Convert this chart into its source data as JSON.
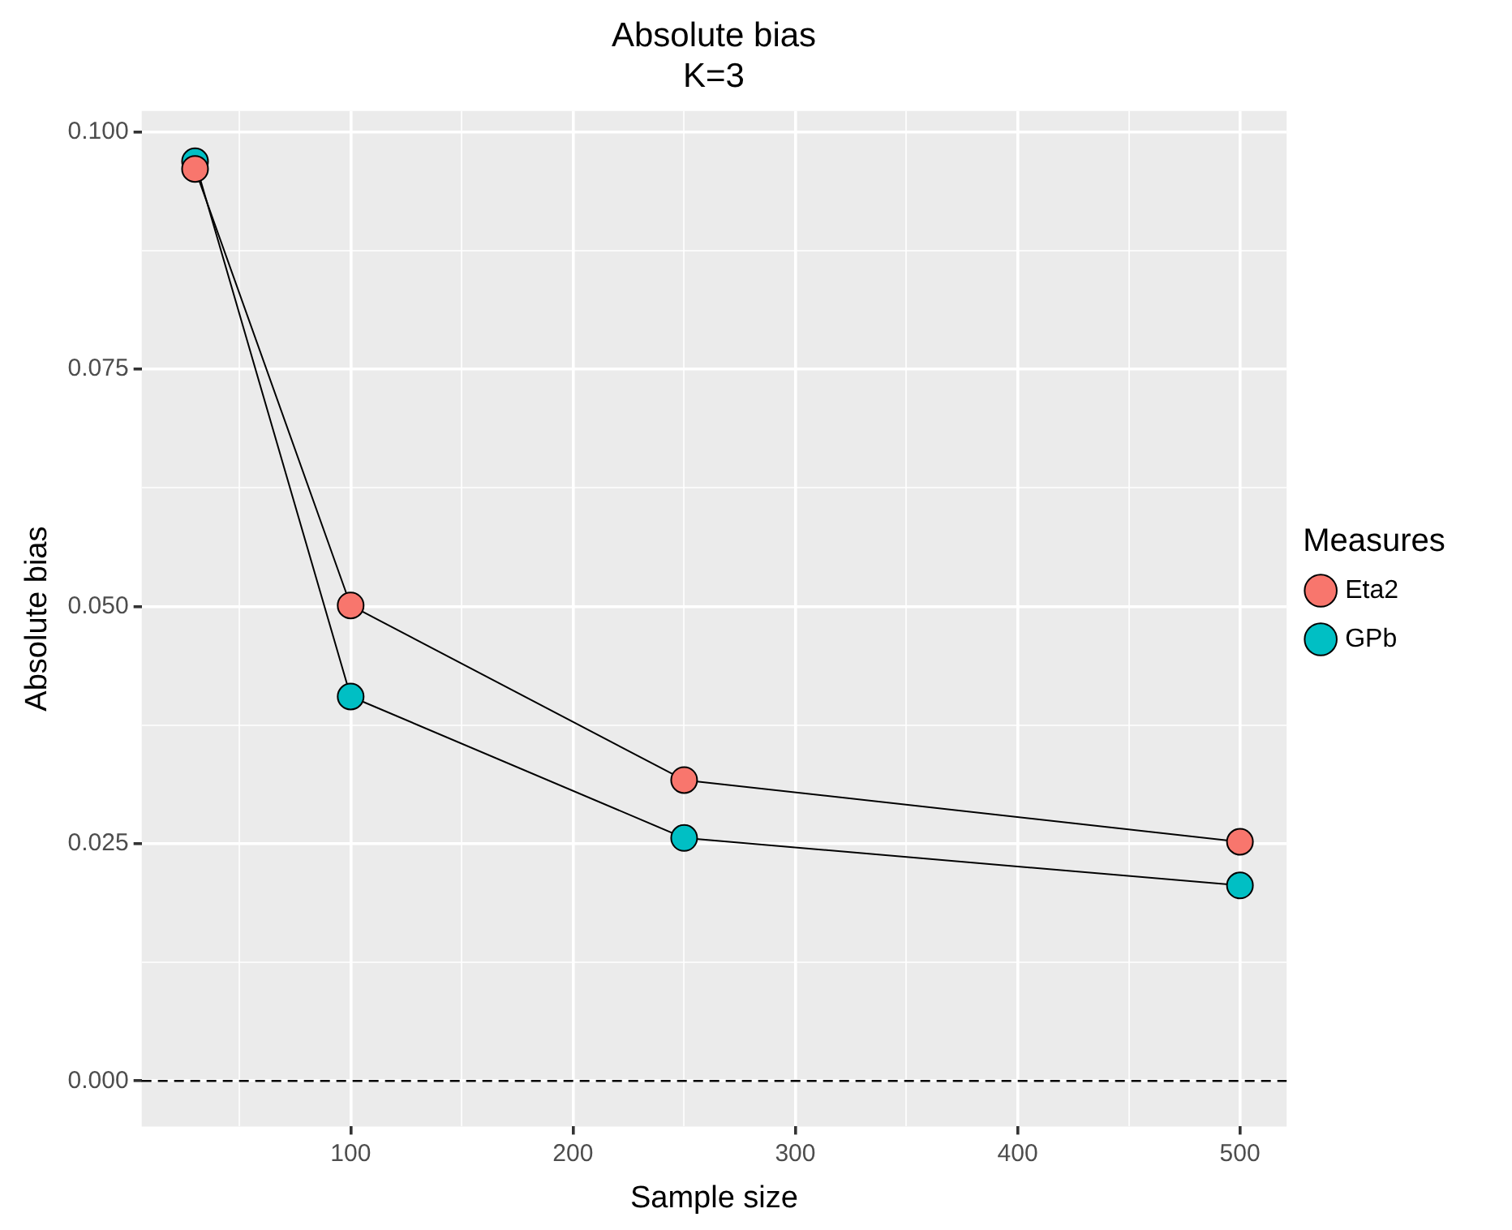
{
  "chart_data": {
    "type": "line",
    "title": "Absolute bias\nK=3",
    "xlabel": "Sample size",
    "ylabel": "Absolute bias",
    "legend_title": "Measures",
    "x": [
      30,
      100,
      250,
      500
    ],
    "series": [
      {
        "name": "Eta2",
        "color": "#f8766d",
        "values": [
          0.0961,
          0.0501,
          0.0317,
          0.0252
        ]
      },
      {
        "name": "GPb",
        "color": "#00bfc4",
        "values": [
          0.0969,
          0.0405,
          0.0256,
          0.0206
        ]
      }
    ],
    "xlim": [
      6,
      521
    ],
    "ylim": [
      -0.0048,
      0.1022
    ],
    "xticks": [
      {
        "value": 50,
        "label": null
      },
      100,
      {
        "value": 150,
        "label": null
      },
      200,
      {
        "value": 250,
        "label": null
      },
      300,
      {
        "value": 350,
        "label": null
      },
      400,
      {
        "value": 450,
        "label": null
      },
      500
    ],
    "yticks": [
      {
        "value": 0,
        "label": "0.000"
      },
      {
        "value": 0.0125,
        "label": null
      },
      {
        "value": 0.025,
        "label": "0.025"
      },
      {
        "value": 0.0375,
        "label": null
      },
      {
        "value": 0.05,
        "label": "0.050"
      },
      {
        "value": 0.0625,
        "label": null
      },
      {
        "value": 0.075,
        "label": "0.075"
      },
      {
        "value": 0.0875,
        "label": null
      },
      {
        "value": 0.1,
        "label": "0.100"
      }
    ],
    "ref_lines": [
      {
        "axis": "y",
        "value": 0,
        "color": "#000000",
        "line_style": "dashed"
      }
    ],
    "grid": true,
    "legend": "right",
    "marker": "circle",
    "line_style": "solid"
  }
}
